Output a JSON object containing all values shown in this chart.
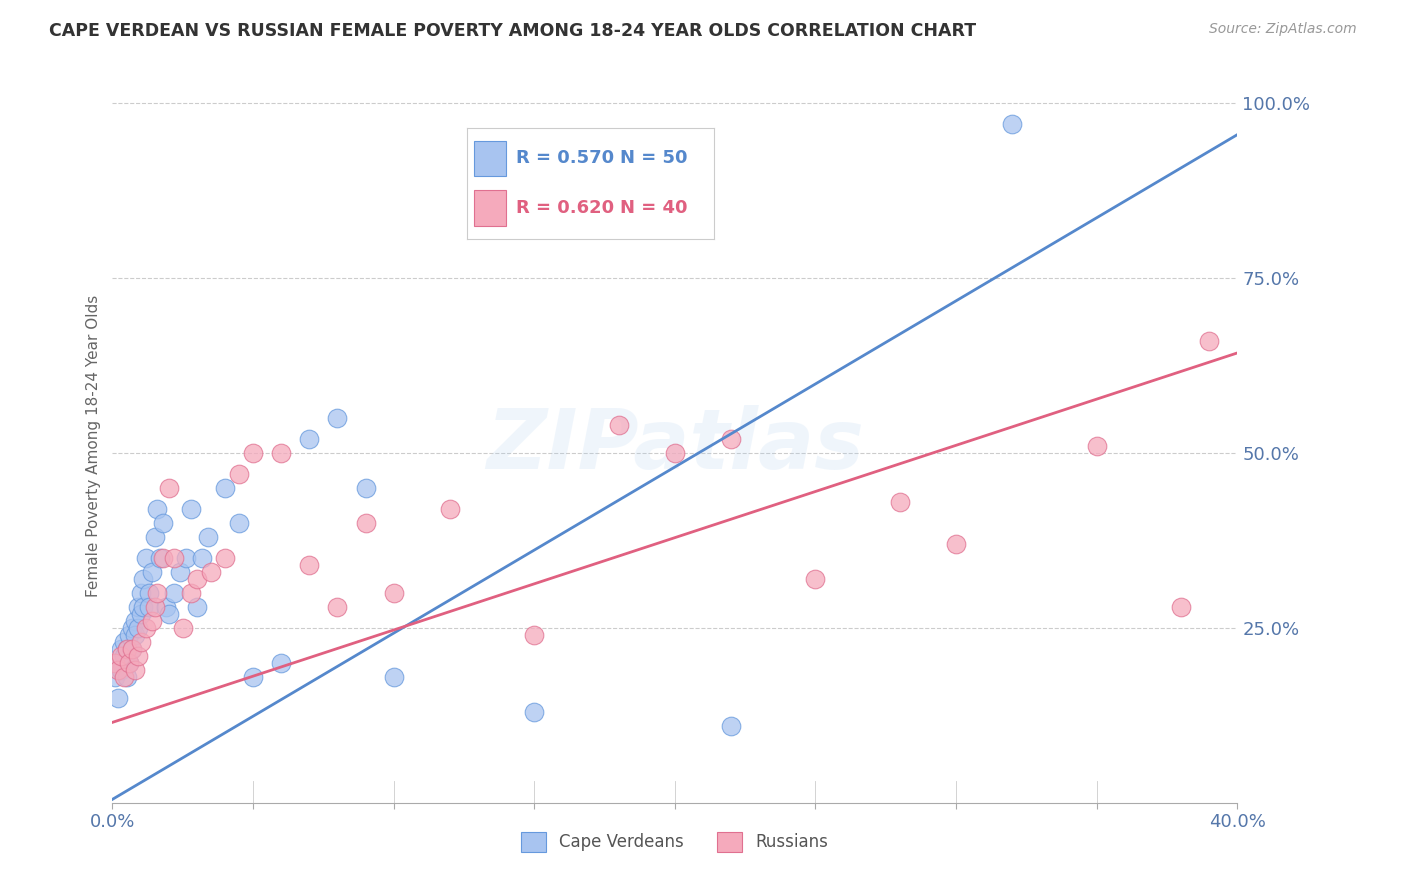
{
  "title": "CAPE VERDEAN VS RUSSIAN FEMALE POVERTY AMONG 18-24 YEAR OLDS CORRELATION CHART",
  "source": "Source: ZipAtlas.com",
  "ylabel": "Female Poverty Among 18-24 Year Olds",
  "x_min": 0.0,
  "x_max": 0.4,
  "y_min": 0.0,
  "y_max": 1.02,
  "watermark": "ZIPatlas",
  "blue_fill": "#A8C4F0",
  "blue_edge": "#6699DD",
  "pink_fill": "#F5AABC",
  "pink_edge": "#E07090",
  "blue_line_color": "#5588CC",
  "pink_line_color": "#E06080",
  "axis_label_color": "#5577AA",
  "legend_R_blue": "R = 0.570",
  "legend_N_blue": "N = 50",
  "legend_R_pink": "R = 0.620",
  "legend_N_pink": "N = 40",
  "legend_label_blue": "Cape Verdeans",
  "legend_label_pink": "Russians",
  "blue_intercept": 0.005,
  "blue_slope": 2.375,
  "pink_intercept": 0.115,
  "pink_slope": 1.32,
  "blue_points_x": [
    0.001,
    0.002,
    0.002,
    0.003,
    0.003,
    0.004,
    0.004,
    0.005,
    0.005,
    0.006,
    0.006,
    0.006,
    0.007,
    0.007,
    0.008,
    0.008,
    0.009,
    0.009,
    0.01,
    0.01,
    0.011,
    0.011,
    0.012,
    0.013,
    0.013,
    0.014,
    0.015,
    0.016,
    0.017,
    0.018,
    0.019,
    0.02,
    0.022,
    0.024,
    0.026,
    0.028,
    0.03,
    0.032,
    0.034,
    0.04,
    0.045,
    0.05,
    0.06,
    0.07,
    0.08,
    0.09,
    0.1,
    0.15,
    0.22,
    0.32
  ],
  "blue_points_y": [
    0.18,
    0.15,
    0.2,
    0.22,
    0.19,
    0.21,
    0.23,
    0.18,
    0.22,
    0.2,
    0.24,
    0.2,
    0.25,
    0.22,
    0.26,
    0.24,
    0.28,
    0.25,
    0.3,
    0.27,
    0.32,
    0.28,
    0.35,
    0.3,
    0.28,
    0.33,
    0.38,
    0.42,
    0.35,
    0.4,
    0.28,
    0.27,
    0.3,
    0.33,
    0.35,
    0.42,
    0.28,
    0.35,
    0.38,
    0.45,
    0.4,
    0.18,
    0.2,
    0.52,
    0.55,
    0.45,
    0.18,
    0.13,
    0.11,
    0.97
  ],
  "pink_points_x": [
    0.001,
    0.002,
    0.003,
    0.004,
    0.005,
    0.006,
    0.007,
    0.008,
    0.009,
    0.01,
    0.012,
    0.014,
    0.015,
    0.016,
    0.018,
    0.02,
    0.022,
    0.025,
    0.028,
    0.03,
    0.035,
    0.04,
    0.045,
    0.05,
    0.06,
    0.07,
    0.08,
    0.09,
    0.1,
    0.12,
    0.15,
    0.18,
    0.2,
    0.22,
    0.25,
    0.28,
    0.3,
    0.35,
    0.38,
    0.39
  ],
  "pink_points_y": [
    0.2,
    0.19,
    0.21,
    0.18,
    0.22,
    0.2,
    0.22,
    0.19,
    0.21,
    0.23,
    0.25,
    0.26,
    0.28,
    0.3,
    0.35,
    0.45,
    0.35,
    0.25,
    0.3,
    0.32,
    0.33,
    0.35,
    0.47,
    0.5,
    0.5,
    0.34,
    0.28,
    0.4,
    0.3,
    0.42,
    0.24,
    0.54,
    0.5,
    0.52,
    0.32,
    0.43,
    0.37,
    0.51,
    0.28,
    0.66
  ],
  "x_ticks": [
    0.0,
    0.05,
    0.1,
    0.15,
    0.2,
    0.25,
    0.3,
    0.35,
    0.4
  ],
  "y_ticks_right": [
    0.0,
    0.25,
    0.5,
    0.75,
    1.0
  ],
  "y_tick_labels_right": [
    "",
    "25.0%",
    "50.0%",
    "75.0%",
    "100.0%"
  ],
  "grid_color": "#CCCCCC",
  "background_color": "#FFFFFF"
}
